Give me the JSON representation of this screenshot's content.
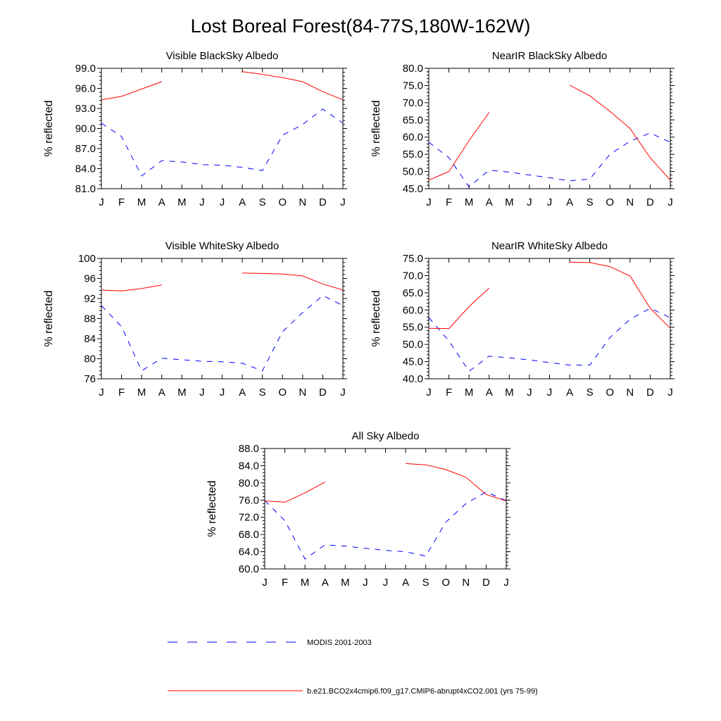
{
  "title": "Lost Boreal Forest(84-77S,180W-162W)",
  "legend": [
    {
      "label": "MODIS 2001-2003",
      "color": "#0000ff",
      "style": "dashed"
    },
    {
      "label": "b.e21.BCO2x4cmip6.f09_g17.CMIP6-abrupt4xCO2.001 (yrs 75-99)",
      "color": "#ff0000",
      "style": "solid"
    }
  ],
  "chart_data": [
    {
      "type": "line",
      "title": "Visible BlackSky Albedo",
      "ylabel": "% reflected",
      "xlabel": "",
      "categories": [
        "J",
        "F",
        "M",
        "A",
        "M",
        "J",
        "J",
        "A",
        "S",
        "O",
        "N",
        "D",
        "J"
      ],
      "yticks": [
        "81.0",
        "84.0",
        "87.0",
        "90.0",
        "93.0",
        "96.0",
        "99.0"
      ],
      "ylim": [
        81,
        99
      ],
      "series": [
        {
          "name": "MODIS 2001-2003",
          "color": "#0000ff",
          "style": "dashed",
          "values": [
            90.8,
            88.8,
            82.9,
            85.2,
            85.0,
            84.6,
            84.5,
            84.2,
            83.7,
            89.0,
            90.6,
            92.9,
            90.8
          ]
        },
        {
          "name": "b.e21.BCO2x4cmip6.f09_g17.CMIP6-abrupt4xCO2.001 (yrs 75-99)",
          "color": "#ff0000",
          "style": "solid",
          "values": [
            94.3,
            94.8,
            95.9,
            97.0,
            null,
            null,
            null,
            98.5,
            98.1,
            97.6,
            97.0,
            95.5,
            94.3
          ]
        }
      ]
    },
    {
      "type": "line",
      "title": "NearIR BlackSky Albedo",
      "ylabel": "% reflected",
      "xlabel": "",
      "categories": [
        "J",
        "F",
        "M",
        "A",
        "M",
        "J",
        "J",
        "A",
        "S",
        "O",
        "N",
        "D",
        "J"
      ],
      "yticks": [
        "45.0",
        "50.0",
        "55.0",
        "60.0",
        "65.0",
        "70.0",
        "75.0",
        "80.0"
      ],
      "ylim": [
        45,
        80
      ],
      "series": [
        {
          "name": "MODIS 2001-2003",
          "color": "#0000ff",
          "style": "dashed",
          "values": [
            58.5,
            54.0,
            45.5,
            50.4,
            49.8,
            49.0,
            48.2,
            47.3,
            47.8,
            55.0,
            58.8,
            61.2,
            58.5
          ]
        },
        {
          "name": "b.e21.BCO2x4cmip6.f09_g17.CMIP6-abrupt4xCO2.001 (yrs 75-99)",
          "color": "#ff0000",
          "style": "solid",
          "values": [
            47.5,
            50.0,
            59.0,
            67.2,
            null,
            null,
            null,
            75.1,
            72.0,
            67.5,
            62.5,
            54.0,
            47.5
          ]
        }
      ]
    },
    {
      "type": "line",
      "title": "Visible WhiteSky Albedo",
      "ylabel": "% reflected",
      "xlabel": "",
      "categories": [
        "J",
        "F",
        "M",
        "A",
        "M",
        "J",
        "J",
        "A",
        "S",
        "O",
        "N",
        "D",
        "J"
      ],
      "yticks": [
        "76",
        "80",
        "84",
        "88",
        "92",
        "96",
        "100"
      ],
      "ylim": [
        76,
        100
      ],
      "series": [
        {
          "name": "MODIS 2001-2003",
          "color": "#0000ff",
          "style": "dashed",
          "values": [
            90.6,
            86.4,
            77.6,
            80.1,
            79.8,
            79.5,
            79.4,
            79.1,
            77.6,
            85.4,
            89.2,
            92.6,
            90.6
          ]
        },
        {
          "name": "b.e21.BCO2x4cmip6.f09_g17.CMIP6-abrupt4xCO2.001 (yrs 75-99)",
          "color": "#ff0000",
          "style": "solid",
          "values": [
            93.7,
            93.5,
            94.0,
            94.7,
            null,
            null,
            null,
            97.1,
            97.0,
            96.9,
            96.5,
            94.9,
            93.7
          ]
        }
      ]
    },
    {
      "type": "line",
      "title": "NearIR WhiteSky Albedo",
      "ylabel": "% reflected",
      "xlabel": "",
      "categories": [
        "J",
        "F",
        "M",
        "A",
        "M",
        "J",
        "J",
        "A",
        "S",
        "O",
        "N",
        "D",
        "J"
      ],
      "yticks": [
        "40.0",
        "45.0",
        "50.0",
        "55.0",
        "60.0",
        "65.0",
        "70.0",
        "75.0"
      ],
      "ylim": [
        40,
        75
      ],
      "series": [
        {
          "name": "MODIS 2001-2003",
          "color": "#0000ff",
          "style": "dashed",
          "values": [
            57.8,
            51.0,
            42.2,
            46.6,
            46.1,
            45.5,
            44.7,
            44.0,
            44.0,
            52.0,
            57.3,
            60.5,
            57.8
          ]
        },
        {
          "name": "b.e21.BCO2x4cmip6.f09_g17.CMIP6-abrupt4xCO2.001 (yrs 75-99)",
          "color": "#ff0000",
          "style": "solid",
          "values": [
            54.7,
            54.6,
            61.0,
            66.4,
            null,
            null,
            null,
            73.9,
            73.8,
            72.6,
            69.9,
            60.5,
            54.7
          ]
        }
      ]
    },
    {
      "type": "line",
      "title": "All Sky Albedo",
      "ylabel": "% reflected",
      "xlabel": "",
      "categories": [
        "J",
        "F",
        "M",
        "A",
        "M",
        "J",
        "J",
        "A",
        "S",
        "O",
        "N",
        "D",
        "J"
      ],
      "yticks": [
        "60.0",
        "64.0",
        "68.0",
        "72.0",
        "76.0",
        "80.0",
        "84.0",
        "88.0"
      ],
      "ylim": [
        60,
        88
      ],
      "series": [
        {
          "name": "MODIS 2001-2003",
          "color": "#0000ff",
          "style": "dashed",
          "values": [
            75.9,
            71.2,
            62.3,
            65.6,
            65.3,
            64.8,
            64.3,
            64.0,
            63.0,
            70.9,
            75.2,
            77.9,
            75.9
          ]
        },
        {
          "name": "b.e21.BCO2x4cmip6.f09_g17.CMIP6-abrupt4xCO2.001 (yrs 75-99)",
          "color": "#ff0000",
          "style": "solid",
          "values": [
            75.8,
            75.5,
            77.7,
            80.2,
            null,
            null,
            null,
            84.5,
            84.2,
            83.1,
            81.3,
            77.3,
            75.8
          ]
        }
      ]
    }
  ]
}
